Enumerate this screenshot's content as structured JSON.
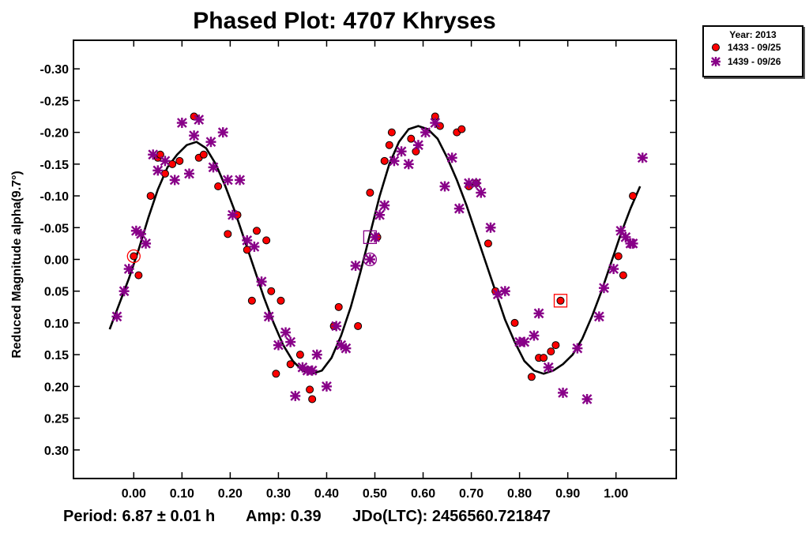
{
  "chart_data": {
    "type": "scatter",
    "title": "Phased Plot: 4707 Khryses",
    "ylabel": "Reduced Magnitude alpha(9.7°)",
    "xlabel": "",
    "xlim": [
      -0.125,
      1.125
    ],
    "ylim": [
      0.345,
      -0.345
    ],
    "y_inverted": true,
    "x_ticks": [
      0.0,
      0.1,
      0.2,
      0.3,
      0.4,
      0.5,
      0.6,
      0.7,
      0.8,
      0.9,
      1.0
    ],
    "x_tick_labels": [
      "0.00",
      "0.10",
      "0.20",
      "0.30",
      "0.40",
      "0.50",
      "0.60",
      "0.70",
      "0.80",
      "0.90",
      "1.00"
    ],
    "y_ticks": [
      -0.3,
      -0.25,
      -0.2,
      -0.15,
      -0.1,
      -0.05,
      0.0,
      0.05,
      0.1,
      0.15,
      0.2,
      0.25,
      0.3
    ],
    "y_tick_labels": [
      "-0.30",
      "-0.25",
      "-0.20",
      "-0.15",
      "-0.10",
      "-0.05",
      "0.00",
      "0.05",
      "0.10",
      "0.15",
      "0.20",
      "0.25",
      "0.30"
    ],
    "grid": false,
    "legend_position": "outside-top-right",
    "legend": {
      "title": "Year: 2013",
      "entries": [
        "1433 - 09/25",
        "1439 - 09/26"
      ]
    },
    "series": [
      {
        "name": "1433 - 09/25",
        "marker": "circle",
        "color": "#ff0000",
        "x": [
          0.0,
          0.01,
          0.035,
          0.05,
          0.055,
          0.065,
          0.08,
          0.095,
          0.125,
          0.135,
          0.145,
          0.175,
          0.195,
          0.215,
          0.235,
          0.245,
          0.255,
          0.275,
          0.285,
          0.295,
          0.305,
          0.325,
          0.345,
          0.365,
          0.37,
          0.415,
          0.425,
          0.465,
          0.49,
          0.505,
          0.52,
          0.53,
          0.535,
          0.575,
          0.585,
          0.625,
          0.635,
          0.67,
          0.68,
          0.695,
          0.71,
          0.735,
          0.75,
          0.79,
          0.825,
          0.84,
          0.85,
          0.865,
          0.875,
          0.885,
          1.005,
          1.015,
          1.035
        ],
        "y": [
          -0.005,
          0.025,
          -0.1,
          -0.16,
          -0.165,
          -0.135,
          -0.15,
          -0.155,
          -0.225,
          -0.16,
          -0.165,
          -0.115,
          -0.04,
          -0.07,
          -0.015,
          0.065,
          -0.045,
          -0.03,
          0.05,
          0.18,
          0.065,
          0.165,
          0.15,
          0.205,
          0.22,
          0.105,
          0.075,
          0.105,
          -0.105,
          -0.035,
          -0.155,
          -0.18,
          -0.2,
          -0.19,
          -0.17,
          -0.225,
          -0.21,
          -0.2,
          -0.205,
          -0.115,
          -0.12,
          -0.025,
          0.05,
          0.1,
          0.185,
          0.155,
          0.155,
          0.145,
          0.135,
          0.065,
          -0.005,
          0.025,
          -0.1
        ]
      },
      {
        "name": "1439 - 09/26",
        "marker": "asterisk",
        "color": "#880088",
        "x": [
          -0.035,
          -0.02,
          -0.01,
          0.005,
          0.015,
          0.025,
          0.04,
          0.05,
          0.065,
          0.085,
          0.1,
          0.115,
          0.125,
          0.135,
          0.16,
          0.165,
          0.185,
          0.195,
          0.205,
          0.22,
          0.235,
          0.25,
          0.265,
          0.28,
          0.3,
          0.315,
          0.325,
          0.335,
          0.35,
          0.36,
          0.37,
          0.38,
          0.4,
          0.42,
          0.43,
          0.44,
          0.46,
          0.49,
          0.5,
          0.51,
          0.52,
          0.54,
          0.555,
          0.57,
          0.59,
          0.605,
          0.625,
          0.645,
          0.66,
          0.675,
          0.695,
          0.71,
          0.72,
          0.74,
          0.755,
          0.77,
          0.8,
          0.81,
          0.83,
          0.84,
          0.86,
          0.89,
          0.92,
          0.94,
          0.965,
          0.975,
          0.995,
          1.01,
          1.02,
          1.03,
          1.035,
          1.055
        ],
        "y": [
          0.09,
          0.05,
          0.015,
          -0.045,
          -0.04,
          -0.025,
          -0.165,
          -0.14,
          -0.155,
          -0.125,
          -0.215,
          -0.135,
          -0.195,
          -0.22,
          -0.185,
          -0.145,
          -0.2,
          -0.125,
          -0.07,
          -0.125,
          -0.03,
          -0.02,
          0.035,
          0.09,
          0.135,
          0.115,
          0.13,
          0.215,
          0.17,
          0.175,
          0.175,
          0.15,
          0.2,
          0.105,
          0.135,
          0.14,
          0.01,
          0.0,
          -0.035,
          -0.07,
          -0.085,
          -0.155,
          -0.17,
          -0.15,
          -0.18,
          -0.2,
          -0.215,
          -0.115,
          -0.16,
          -0.08,
          -0.12,
          -0.12,
          -0.105,
          -0.05,
          0.055,
          0.05,
          0.13,
          0.13,
          0.12,
          0.085,
          0.17,
          0.21,
          0.14,
          0.22,
          0.09,
          0.045,
          0.015,
          -0.045,
          -0.035,
          -0.025,
          -0.025,
          -0.16
        ]
      }
    ],
    "fit_curve": {
      "description_points_x": [
        -0.05,
        -0.03,
        -0.01,
        0.01,
        0.03,
        0.05,
        0.07,
        0.09,
        0.11,
        0.13,
        0.15,
        0.17,
        0.19,
        0.21,
        0.23,
        0.25,
        0.27,
        0.29,
        0.31,
        0.33,
        0.35,
        0.37,
        0.39,
        0.41,
        0.43,
        0.45,
        0.47,
        0.49,
        0.51,
        0.53,
        0.55,
        0.57,
        0.59,
        0.61,
        0.63,
        0.65,
        0.67,
        0.69,
        0.71,
        0.73,
        0.75,
        0.77,
        0.79,
        0.81,
        0.83,
        0.85,
        0.87,
        0.89,
        0.91,
        0.93,
        0.95,
        0.97,
        0.99,
        1.01,
        1.03,
        1.05
      ],
      "y": [
        0.11,
        0.07,
        0.03,
        -0.015,
        -0.065,
        -0.11,
        -0.145,
        -0.165,
        -0.18,
        -0.185,
        -0.175,
        -0.15,
        -0.115,
        -0.075,
        -0.03,
        0.015,
        0.06,
        0.1,
        0.135,
        0.16,
        0.175,
        0.18,
        0.175,
        0.155,
        0.12,
        0.075,
        0.02,
        -0.04,
        -0.1,
        -0.15,
        -0.185,
        -0.205,
        -0.21,
        -0.205,
        -0.19,
        -0.16,
        -0.125,
        -0.085,
        -0.04,
        0.005,
        0.05,
        0.095,
        0.13,
        0.16,
        0.175,
        0.18,
        0.175,
        0.165,
        0.15,
        0.125,
        0.09,
        0.05,
        0.005,
        -0.04,
        -0.08,
        -0.115
      ]
    },
    "annotations": [
      {
        "marker": "circle-outline",
        "color": "#ff0000",
        "x": 0.0,
        "y": -0.005
      },
      {
        "marker": "circle-outline",
        "color": "#880088",
        "x": 0.49,
        "y": 0.0
      },
      {
        "marker": "square-outline",
        "color": "#880088",
        "x": 0.49,
        "y": -0.035
      },
      {
        "marker": "square-outline",
        "color": "#ff0000",
        "x": 0.885,
        "y": 0.065
      }
    ]
  },
  "footer": {
    "period": "Period: 6.87 ± 0.01 h",
    "amp": "Amp: 0.39",
    "jdo": "JDo(LTC): 2456560.721847"
  }
}
